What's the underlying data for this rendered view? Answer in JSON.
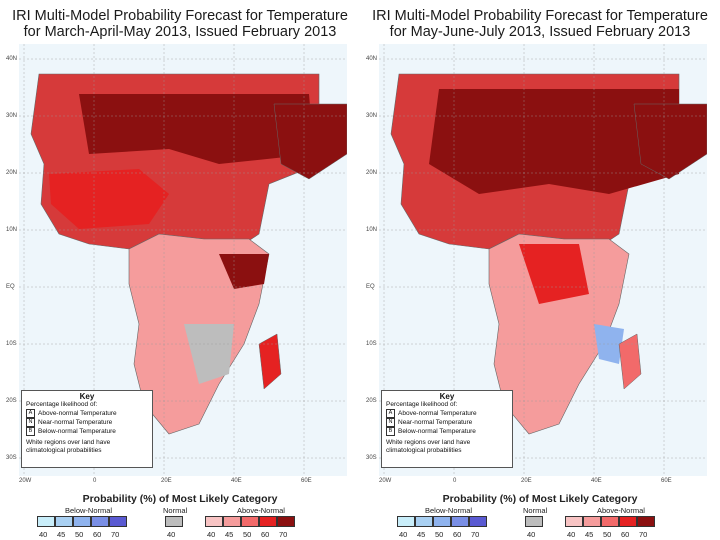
{
  "scale": {
    "title": "Probability (%) of Most Likely Category",
    "below_label": "Below-Normal",
    "normal_label": "Normal",
    "above_label": "Above-Normal",
    "below_colors": [
      "#c9eefa",
      "#a9d0f2",
      "#8fb3ee",
      "#7a8fe6",
      "#5a5ad2"
    ],
    "normal_color": "#bdbdbd",
    "above_colors": [
      "#f8c4c4",
      "#f59c9c",
      "#f26a6a",
      "#e52222",
      "#8b1010"
    ],
    "below_ticks": [
      "40",
      "45",
      "50",
      "60",
      "70"
    ],
    "normal_ticks": [
      "40"
    ],
    "above_ticks": [
      "40",
      "45",
      "50",
      "60",
      "70"
    ]
  },
  "key": {
    "title": "Key",
    "intro": "Percentage likelihood of:",
    "rows": [
      {
        "letter": "A",
        "label": "Above-normal Temperature"
      },
      {
        "letter": "N",
        "label": "Near-normal Temperature"
      },
      {
        "letter": "B",
        "label": "Below-normal Temperature"
      }
    ],
    "note": "White regions over land have climatological probabilities"
  },
  "axes": {
    "lat_labels": [
      "40N",
      "30N",
      "20N",
      "10N",
      "EQ",
      "10S",
      "20S",
      "30S"
    ],
    "lon_labels": [
      "20W",
      "0",
      "20E",
      "40E",
      "60E"
    ]
  },
  "panels": [
    {
      "title_line1": "IRI Multi-Model Probability Forecast for Temperature",
      "title_line2": "for March-April-May 2013, Issued February 2013"
    },
    {
      "title_line1": "IRI Multi-Model Probability Forecast for Temperature",
      "title_line2": "for May-June-July 2013, Issued February 2013"
    }
  ],
  "colors": {
    "ocean": "#eef6fb",
    "land_white": "#ffffff"
  }
}
